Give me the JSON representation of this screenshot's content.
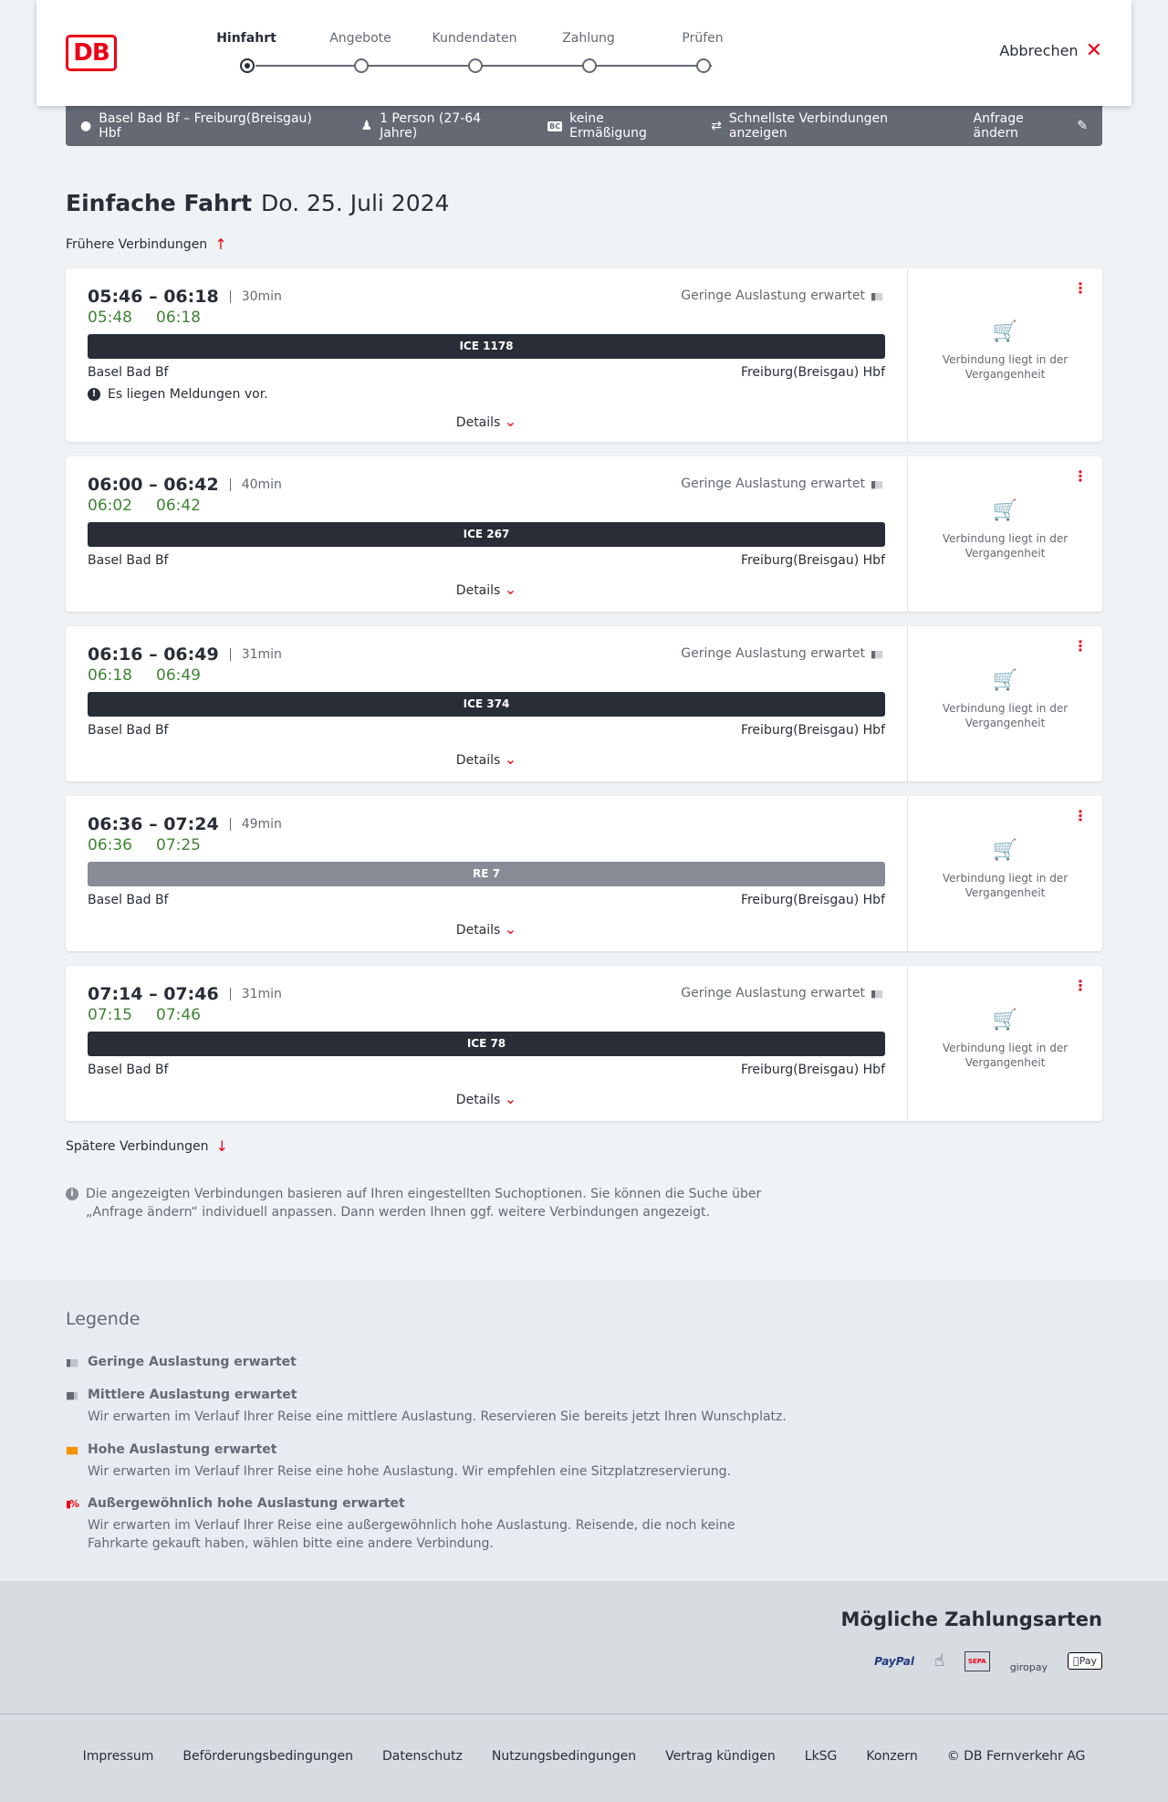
{
  "header": {
    "logo": "DB",
    "steps": [
      "Hinfahrt",
      "Angebote",
      "Kundendaten",
      "Zahlung",
      "Prüfen"
    ],
    "active_step": 0,
    "cancel": "Abbrechen"
  },
  "summary": {
    "route": "Basel Bad Bf – Freiburg(Breisgau) Hbf",
    "persons": "1 Person (27-64 Jahre)",
    "discount": "keine Ermäßigung",
    "bc": "BC",
    "fastest": "Schnellste Verbindungen anzeigen",
    "change": "Anfrage ändern"
  },
  "page": {
    "title": "Einfache Fahrt",
    "date": "Do. 25. Juli 2024",
    "earlier": "Frühere Verbindungen",
    "later": "Spätere Verbindungen",
    "info": "Die angezeigten Verbindungen basieren auf Ihren eingestellten Suchoptionen. Sie können die Suche über „Anfrage ändern“ individuell anpassen. Dann werden Ihnen ggf. weitere Verbindungen angezeigt."
  },
  "connections": [
    {
      "times": "05:46 – 06:18",
      "duration": "30min",
      "rt_dep": "05:48",
      "rt_arr": "06:18",
      "load": "Geringe Auslastung erwartet",
      "train": "ICE 1178",
      "from": "Basel Bad Bf",
      "to": "Freiburg(Breisgau) Hbf",
      "message": "Es liegen Meldungen vor.",
      "details": "Details",
      "status": "Verbindung liegt in der Vergangenheit"
    },
    {
      "times": "06:00 – 06:42",
      "duration": "40min",
      "rt_dep": "06:02",
      "rt_arr": "06:42",
      "load": "Geringe Auslastung erwartet",
      "train": "ICE 267",
      "from": "Basel Bad Bf",
      "to": "Freiburg(Breisgau) Hbf",
      "details": "Details",
      "status": "Verbindung liegt in der Vergangenheit"
    },
    {
      "times": "06:16 – 06:49",
      "duration": "31min",
      "rt_dep": "06:18",
      "rt_arr": "06:49",
      "load": "Geringe Auslastung erwartet",
      "train": "ICE 374",
      "from": "Basel Bad Bf",
      "to": "Freiburg(Breisgau) Hbf",
      "details": "Details",
      "status": "Verbindung liegt in der Vergangenheit"
    },
    {
      "times": "06:36 – 07:24",
      "duration": "49min",
      "rt_dep": "06:36",
      "rt_arr": "07:25",
      "train": "RE 7",
      "from": "Basel Bad Bf",
      "to": "Freiburg(Breisgau) Hbf",
      "details": "Details",
      "status": "Verbindung liegt in der Vergangenheit"
    },
    {
      "times": "07:14 – 07:46",
      "duration": "31min",
      "rt_dep": "07:15",
      "rt_arr": "07:46",
      "load": "Geringe Auslastung erwartet",
      "train": "ICE 78",
      "from": "Basel Bad Bf",
      "to": "Freiburg(Breisgau) Hbf",
      "details": "Details",
      "status": "Verbindung liegt in der Vergangenheit"
    }
  ],
  "legend": {
    "title": "Legende",
    "items": [
      {
        "label": "Geringe Auslastung erwartet",
        "color": "#646973"
      },
      {
        "label": "Mittlere Auslastung erwartet",
        "desc": "Wir erwarten im Verlauf Ihrer Reise eine mittlere Auslastung. Reservieren Sie bereits jetzt Ihren Wunschplatz.",
        "color": "#646973"
      },
      {
        "label": "Hohe Auslastung erwartet",
        "desc": "Wir erwarten im Verlauf Ihrer Reise eine hohe Auslastung. Wir empfehlen eine Sitzplatzreservierung.",
        "color": "#f39200"
      },
      {
        "label": "Außergewöhnlich hohe Auslastung erwartet",
        "desc": "Wir erwarten im Verlauf Ihrer Reise eine außergewöhnlich hohe Auslastung. Reisende, die noch keine Fahrkarte gekauft haben, wählen bitte eine andere Verbindung.",
        "color": "#ec0016"
      }
    ]
  },
  "payment": {
    "title": "Mögliche Zahlungsarten",
    "methods": [
      "PayPal",
      "SEPA",
      "giropay",
      "Pay"
    ]
  },
  "footer": [
    "Impressum",
    "Beförderungsbedingungen",
    "Datenschutz",
    "Nutzungsbedingungen",
    "Vertrag kündigen",
    "LkSG",
    "Konzern",
    "© DB Fernverkehr AG"
  ]
}
